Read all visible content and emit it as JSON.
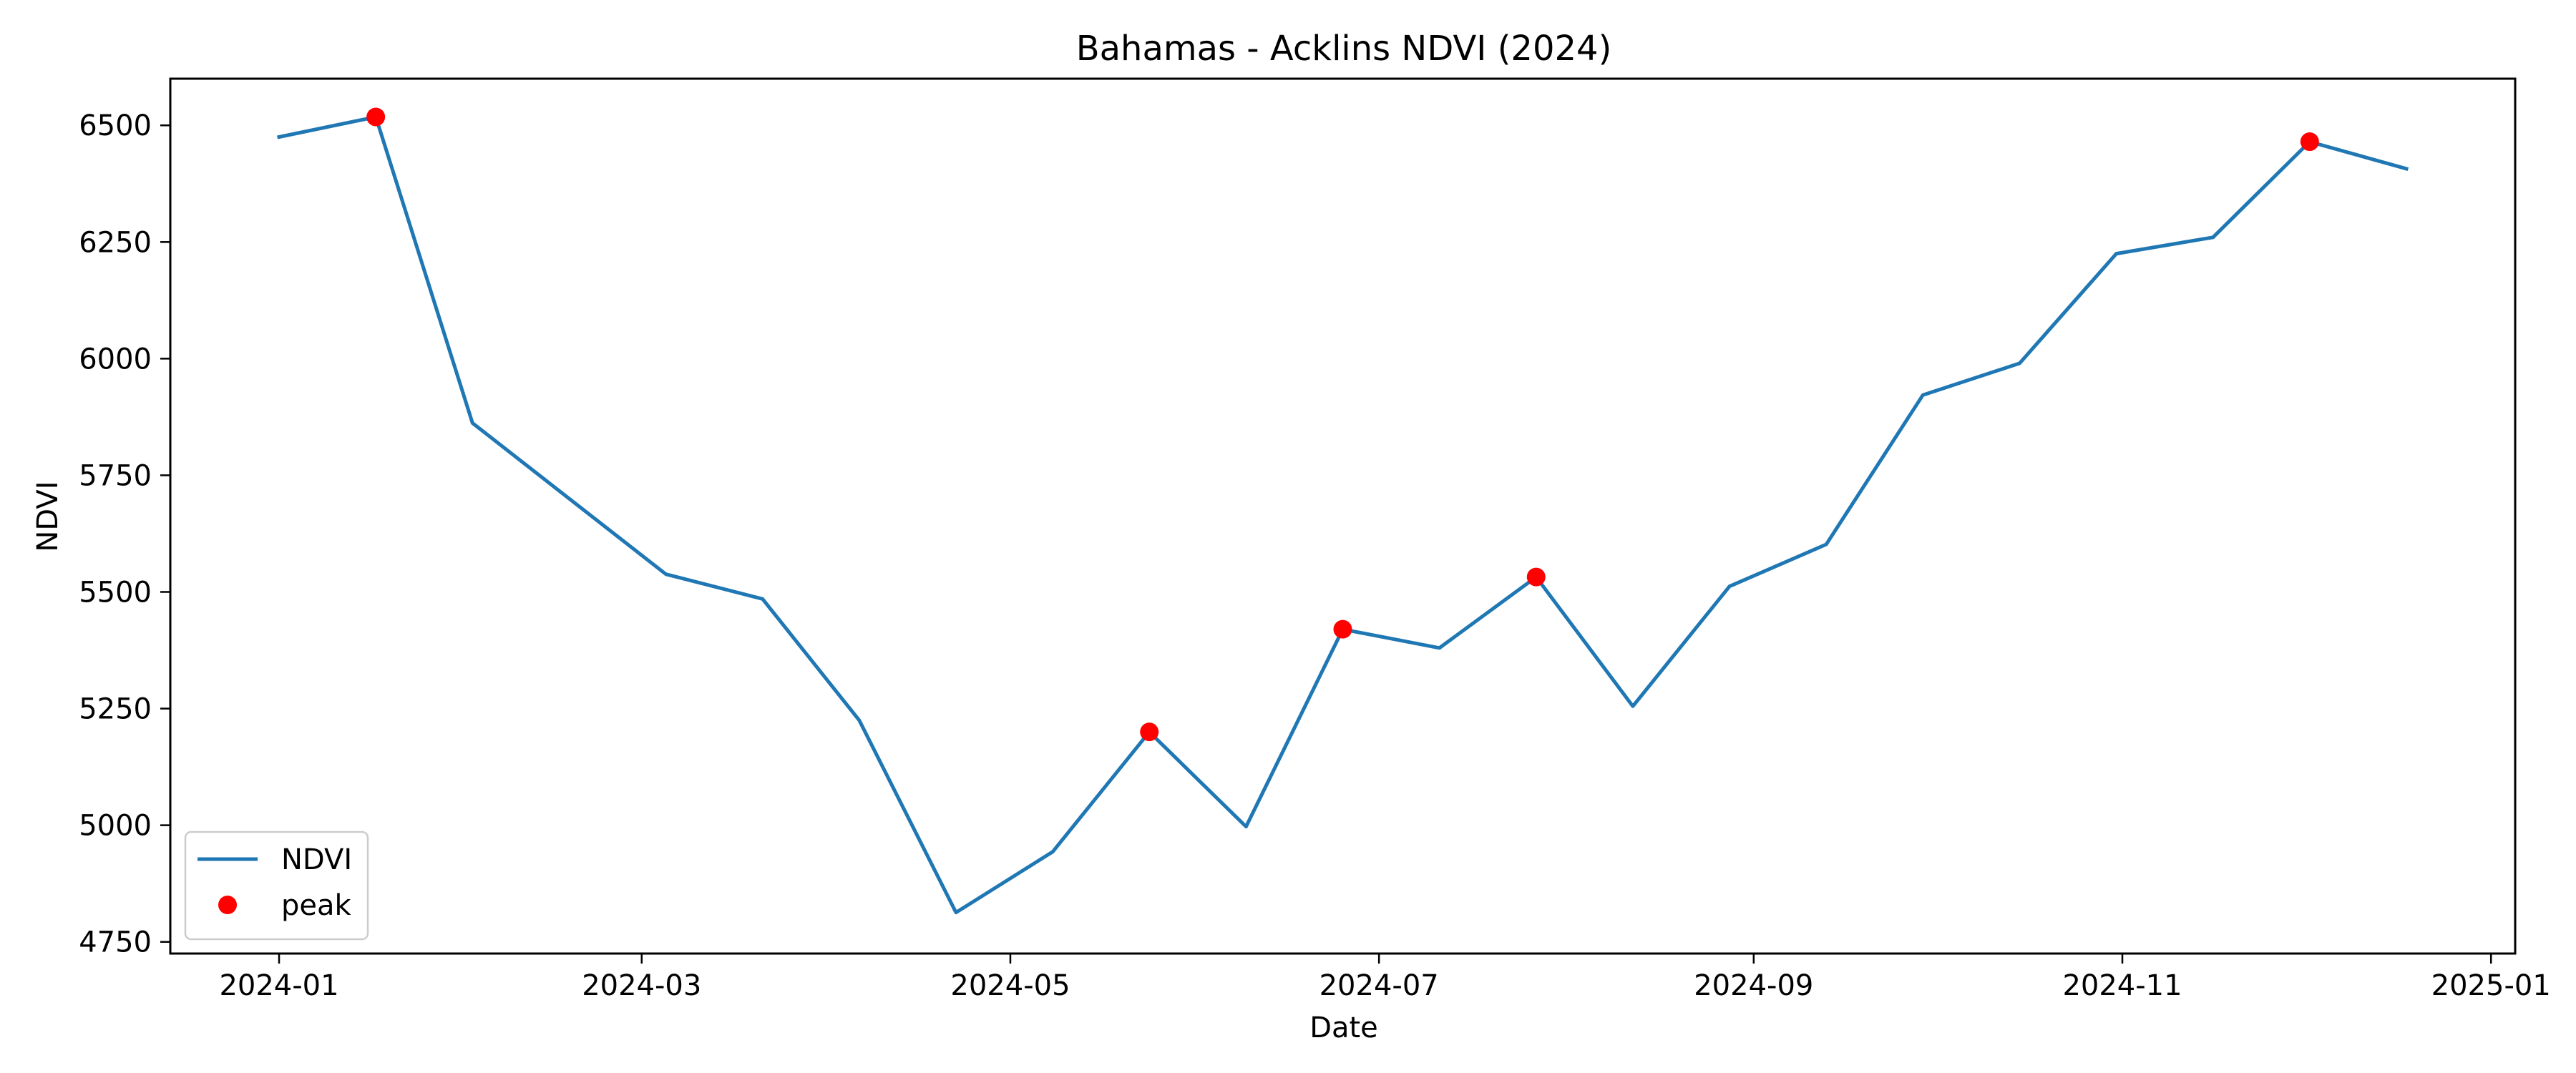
{
  "chart_data": {
    "type": "line",
    "title": "Bahamas - Acklins NDVI (2024)",
    "xlabel": "Date",
    "ylabel": "NDVI",
    "x_ticks": [
      "2024-01",
      "2024-03",
      "2024-05",
      "2024-07",
      "2024-09",
      "2024-11",
      "2025-01"
    ],
    "y_ticks": [
      4750,
      5000,
      5250,
      5500,
      5750,
      6000,
      6250,
      6500
    ],
    "xlim": [
      "2023-12-14",
      "2025-01-05"
    ],
    "ylim": [
      4725,
      6600
    ],
    "grid": false,
    "legend": {
      "placement": "lower-left"
    },
    "series": [
      {
        "name": "NDVI",
        "type": "line",
        "color": "#1f77b4",
        "points": [
          {
            "x": "2024-01-01",
            "y": 6475
          },
          {
            "x": "2024-01-17",
            "y": 6518
          },
          {
            "x": "2024-02-02",
            "y": 5862
          },
          {
            "x": "2024-03-05",
            "y": 5538
          },
          {
            "x": "2024-03-21",
            "y": 5485
          },
          {
            "x": "2024-04-06",
            "y": 5225
          },
          {
            "x": "2024-04-22",
            "y": 4813
          },
          {
            "x": "2024-05-08",
            "y": 4943
          },
          {
            "x": "2024-05-24",
            "y": 5200
          },
          {
            "x": "2024-06-09",
            "y": 4997
          },
          {
            "x": "2024-06-25",
            "y": 5420
          },
          {
            "x": "2024-07-11",
            "y": 5380
          },
          {
            "x": "2024-07-27",
            "y": 5532
          },
          {
            "x": "2024-08-12",
            "y": 5255
          },
          {
            "x": "2024-08-28",
            "y": 5512
          },
          {
            "x": "2024-09-13",
            "y": 5602
          },
          {
            "x": "2024-09-29",
            "y": 5922
          },
          {
            "x": "2024-10-15",
            "y": 5990
          },
          {
            "x": "2024-10-31",
            "y": 6225
          },
          {
            "x": "2024-11-16",
            "y": 6260
          },
          {
            "x": "2024-12-02",
            "y": 6465
          },
          {
            "x": "2024-12-18",
            "y": 6407
          }
        ]
      },
      {
        "name": "peak",
        "type": "scatter",
        "color": "#ff0000",
        "points": [
          {
            "x": "2024-01-17",
            "y": 6518
          },
          {
            "x": "2024-05-24",
            "y": 5200
          },
          {
            "x": "2024-06-25",
            "y": 5420
          },
          {
            "x": "2024-07-27",
            "y": 5532
          },
          {
            "x": "2024-12-02",
            "y": 6465
          }
        ]
      }
    ]
  }
}
